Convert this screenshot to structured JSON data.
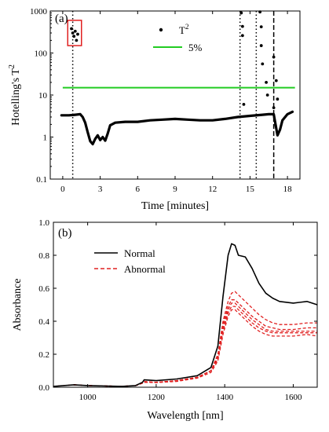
{
  "chart_data": [
    {
      "panel_label": "(a)",
      "type": "scatter",
      "xlabel": "Time [minutes]",
      "ylabel": "Hotelling's T",
      "ylabel_sup": "2",
      "xlim": [
        -1,
        19
      ],
      "ylim": [
        0.1,
        1000
      ],
      "yscale": "log",
      "xticks": [
        0,
        3,
        6,
        9,
        12,
        15,
        18
      ],
      "yticks": [
        0.1,
        1,
        10,
        100,
        1000
      ],
      "ytick_labels": [
        "0.1",
        "1",
        "10",
        "100",
        "1000"
      ],
      "legend": {
        "position": "top-center",
        "series_label": "T",
        "series_label_sup": "2",
        "limit_label": "5%"
      },
      "limit": {
        "name": "5%",
        "value": 15,
        "color": "#22cc22"
      },
      "vlines_dotted": [
        0.8,
        14.2,
        15.5
      ],
      "vlines_dashed": [
        16.9
      ],
      "highlight_box": {
        "x": [
          0.4,
          1.5
        ],
        "y": [
          150,
          600
        ],
        "color": "#e02020"
      },
      "points": [
        [
          0.7,
          380
        ],
        [
          0.8,
          300
        ],
        [
          0.9,
          250
        ],
        [
          1.0,
          330
        ],
        [
          1.1,
          200
        ],
        [
          1.2,
          280
        ],
        [
          14.3,
          900
        ],
        [
          14.4,
          430
        ],
        [
          14.4,
          260
        ],
        [
          14.5,
          6
        ],
        [
          15.8,
          950
        ],
        [
          15.9,
          420
        ],
        [
          15.9,
          150
        ],
        [
          16.0,
          55
        ],
        [
          16.3,
          20
        ],
        [
          16.4,
          10
        ],
        [
          16.9,
          80
        ],
        [
          16.9,
          5
        ],
        [
          17.1,
          22
        ],
        [
          17.2,
          8
        ]
      ],
      "trace": [
        [
          -0.1,
          3.3
        ],
        [
          0.5,
          3.3
        ],
        [
          1.0,
          3.4
        ],
        [
          1.4,
          3.5
        ],
        [
          1.6,
          3.0
        ],
        [
          1.8,
          2.2
        ],
        [
          2.0,
          1.3
        ],
        [
          2.2,
          0.8
        ],
        [
          2.4,
          0.68
        ],
        [
          2.6,
          0.9
        ],
        [
          2.8,
          1.1
        ],
        [
          3.0,
          0.85
        ],
        [
          3.2,
          1.0
        ],
        [
          3.4,
          0.82
        ],
        [
          3.6,
          1.2
        ],
        [
          3.8,
          1.9
        ],
        [
          4.2,
          2.2
        ],
        [
          5,
          2.3
        ],
        [
          6,
          2.3
        ],
        [
          7,
          2.5
        ],
        [
          8,
          2.6
        ],
        [
          9,
          2.7
        ],
        [
          10,
          2.6
        ],
        [
          11,
          2.5
        ],
        [
          12,
          2.5
        ],
        [
          13,
          2.7
        ],
        [
          14,
          3.0
        ],
        [
          15,
          3.2
        ],
        [
          16,
          3.4
        ],
        [
          16.5,
          3.5
        ],
        [
          16.9,
          3.5
        ],
        [
          17.2,
          1.1
        ],
        [
          17.4,
          1.5
        ],
        [
          17.6,
          2.5
        ],
        [
          18,
          3.5
        ],
        [
          18.4,
          4.0
        ]
      ]
    },
    {
      "panel_label": "(b)",
      "type": "line",
      "xlabel": "Wavelength [nm]",
      "ylabel": "Absorbance",
      "xlim": [
        900,
        1670
      ],
      "ylim": [
        0,
        1.0
      ],
      "xticks": [
        1000,
        1200,
        1400,
        1600
      ],
      "yticks": [
        0.0,
        0.2,
        0.4,
        0.6,
        0.8,
        1.0
      ],
      "ytick_labels": [
        "0.0",
        "0.2",
        "0.4",
        "0.6",
        "0.8",
        "1.0"
      ],
      "legend": {
        "position": "top-left"
      },
      "series": [
        {
          "name": "Normal",
          "color": "#000000",
          "dash": "solid",
          "x": [
            900,
            960,
            1000,
            1100,
            1140,
            1160,
            1165,
            1200,
            1260,
            1320,
            1360,
            1380,
            1395,
            1410,
            1420,
            1430,
            1440,
            1460,
            1480,
            1500,
            1520,
            1540,
            1560,
            1600,
            1640,
            1670
          ],
          "y": [
            0.005,
            0.015,
            0.01,
            0.005,
            0.01,
            0.03,
            0.045,
            0.04,
            0.05,
            0.07,
            0.12,
            0.25,
            0.55,
            0.8,
            0.87,
            0.86,
            0.8,
            0.79,
            0.72,
            0.63,
            0.57,
            0.54,
            0.52,
            0.51,
            0.52,
            0.5
          ]
        },
        {
          "name": "Abnormal",
          "color": "#e02020",
          "dash": "dashed",
          "x": [
            900,
            960,
            1000,
            1100,
            1140,
            1160,
            1165,
            1200,
            1260,
            1320,
            1360,
            1380,
            1395,
            1410,
            1420,
            1430,
            1440,
            1460,
            1480,
            1500,
            1520,
            1540,
            1560,
            1600,
            1640,
            1670
          ],
          "y": [
            0.005,
            0.015,
            0.01,
            0.005,
            0.01,
            0.025,
            0.035,
            0.03,
            0.04,
            0.06,
            0.1,
            0.2,
            0.4,
            0.52,
            0.57,
            0.58,
            0.56,
            0.52,
            0.48,
            0.44,
            0.41,
            0.39,
            0.38,
            0.38,
            0.39,
            0.39
          ]
        },
        {
          "name": "",
          "color": "#e02020",
          "dash": "dashed",
          "x": [
            900,
            960,
            1000,
            1100,
            1140,
            1160,
            1165,
            1200,
            1260,
            1320,
            1360,
            1380,
            1395,
            1410,
            1420,
            1430,
            1440,
            1460,
            1480,
            1500,
            1520,
            1540,
            1560,
            1600,
            1640,
            1670
          ],
          "y": [
            0.005,
            0.015,
            0.01,
            0.005,
            0.01,
            0.025,
            0.033,
            0.03,
            0.04,
            0.06,
            0.1,
            0.19,
            0.38,
            0.49,
            0.53,
            0.53,
            0.51,
            0.47,
            0.43,
            0.4,
            0.37,
            0.36,
            0.35,
            0.35,
            0.36,
            0.36
          ]
        },
        {
          "name": "",
          "color": "#e02020",
          "dash": "dashed",
          "x": [
            900,
            960,
            1000,
            1100,
            1140,
            1160,
            1165,
            1200,
            1260,
            1320,
            1360,
            1380,
            1395,
            1410,
            1420,
            1430,
            1440,
            1460,
            1480,
            1500,
            1520,
            1540,
            1560,
            1600,
            1640,
            1670
          ],
          "y": [
            0.005,
            0.015,
            0.01,
            0.005,
            0.01,
            0.025,
            0.032,
            0.03,
            0.04,
            0.06,
            0.1,
            0.18,
            0.36,
            0.47,
            0.51,
            0.51,
            0.49,
            0.45,
            0.41,
            0.38,
            0.35,
            0.34,
            0.34,
            0.34,
            0.34,
            0.34
          ]
        },
        {
          "name": "",
          "color": "#e02020",
          "dash": "dashed",
          "x": [
            900,
            960,
            1000,
            1100,
            1140,
            1160,
            1165,
            1200,
            1260,
            1320,
            1360,
            1380,
            1395,
            1410,
            1420,
            1430,
            1440,
            1460,
            1480,
            1500,
            1520,
            1540,
            1560,
            1600,
            1640,
            1670
          ],
          "y": [
            0.005,
            0.015,
            0.01,
            0.005,
            0.01,
            0.025,
            0.03,
            0.03,
            0.04,
            0.06,
            0.1,
            0.17,
            0.34,
            0.45,
            0.49,
            0.49,
            0.47,
            0.43,
            0.39,
            0.36,
            0.34,
            0.33,
            0.33,
            0.33,
            0.33,
            0.33
          ]
        },
        {
          "name": "",
          "color": "#e02020",
          "dash": "dashed",
          "x": [
            900,
            960,
            1000,
            1100,
            1140,
            1160,
            1165,
            1200,
            1260,
            1320,
            1360,
            1380,
            1395,
            1410,
            1420,
            1430,
            1440,
            1460,
            1480,
            1500,
            1520,
            1540,
            1560,
            1600,
            1640,
            1670
          ],
          "y": [
            0.005,
            0.015,
            0.01,
            0.005,
            0.01,
            0.025,
            0.03,
            0.028,
            0.035,
            0.055,
            0.09,
            0.16,
            0.32,
            0.43,
            0.47,
            0.47,
            0.45,
            0.41,
            0.37,
            0.34,
            0.32,
            0.31,
            0.31,
            0.31,
            0.32,
            0.31
          ]
        }
      ]
    }
  ]
}
